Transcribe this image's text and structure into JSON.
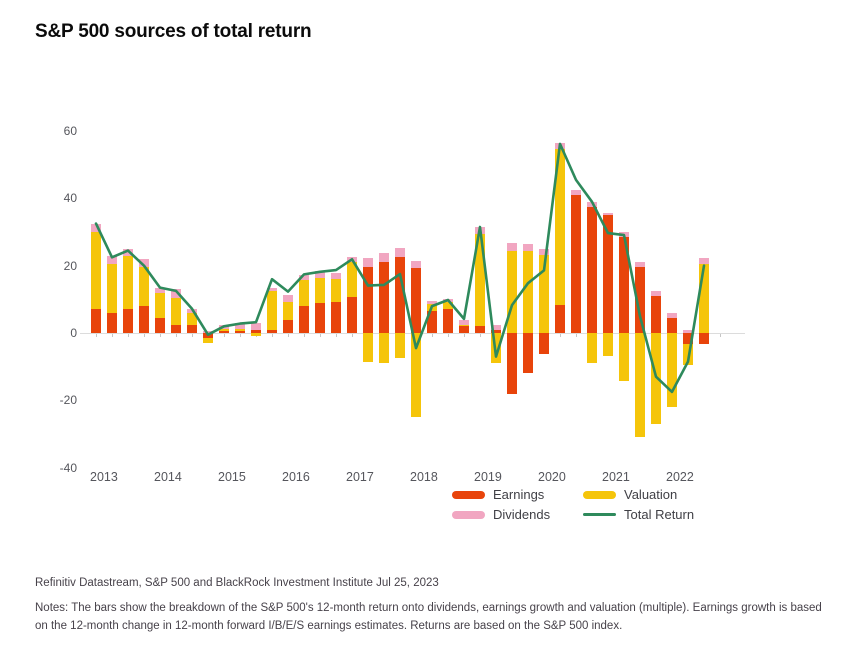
{
  "title": "S&P 500 sources of total return",
  "colors": {
    "earnings": "#E8440B",
    "valuation": "#F5C50A",
    "dividends": "#F1A6C1",
    "total_return": "#2E8A5C",
    "axis_line": "#dcdcdc",
    "tick": "#c6c6c6",
    "axis_label": "#55565c"
  },
  "legend": {
    "items": [
      {
        "label": "Earnings",
        "series": "earnings",
        "swatch": "bar"
      },
      {
        "label": "Valuation",
        "series": "valuation",
        "swatch": "bar"
      },
      {
        "label": "Dividends",
        "series": "dividends",
        "swatch": "bar"
      },
      {
        "label": "Total Return",
        "series": "total_return",
        "swatch": "line"
      }
    ]
  },
  "footer": {
    "source": "Refinitiv Datastream, S&P 500 and BlackRock Investment Institute Jul 25, 2023",
    "notes": "Notes: The bars show the breakdown of the S&P 500's 12-month return onto dividends, earnings growth and valuation (multiple). Earnings growth is based on the 12-month change in 12-month forward I/B/E/S earnings estimates. Returns are based on the S&P 500 index."
  },
  "chart_data": {
    "type": "bar",
    "subtype": "stacked bars (quarterly) with total-return line overlay",
    "start_year": 2013,
    "bars_per_year": 4,
    "n_bars": 39,
    "year_labels": [
      "2013",
      "2014",
      "2015",
      "2016",
      "2017",
      "2018",
      "2019",
      "2020",
      "2021",
      "2022"
    ],
    "yticks": [
      60,
      40,
      20,
      0,
      -20,
      -40
    ],
    "ylim": [
      -40,
      62
    ],
    "grid": "off",
    "legend_position": "bottom-right",
    "series": [
      {
        "name": "Earnings",
        "values": [
          7,
          6,
          7,
          8,
          4.5,
          2.5,
          2.5,
          -1.5,
          0.5,
          0.5,
          1,
          1,
          4,
          8,
          9,
          9.3,
          10.8,
          19.7,
          21.2,
          22.7,
          19.2,
          6.5,
          7,
          2,
          2,
          1,
          -18,
          -12,
          -6.3,
          8.3,
          41,
          37.5,
          35,
          28.6,
          19.5,
          11.1,
          4.4,
          -3.3,
          -3.3
        ]
      },
      {
        "name": "Valuation",
        "values": [
          23,
          14.5,
          16,
          11.5,
          7.5,
          8,
          3.5,
          -1.5,
          0.7,
          0.8,
          -1,
          11.5,
          5.3,
          7.8,
          7.3,
          6.7,
          10.4,
          -8.5,
          -9,
          -7.5,
          -25,
          2,
          2.2,
          0.5,
          27.5,
          -9,
          24.5,
          24.5,
          23.2,
          46.5,
          0,
          -9,
          -6.8,
          -14.2,
          -31,
          -27,
          -22,
          -6.2,
          20.5
        ]
      },
      {
        "name": "Dividends",
        "values": [
          2.5,
          2.5,
          2,
          2.5,
          1.5,
          2.5,
          1,
          0.5,
          1.3,
          1.7,
          2,
          1,
          2,
          1.4,
          2.2,
          1.9,
          1.5,
          2.7,
          2.5,
          2.5,
          2.2,
          1,
          1,
          1.5,
          2,
          1.5,
          2.2,
          1.9,
          1.7,
          1.8,
          1.6,
          1.4,
          0.8,
          1.5,
          1.5,
          1.4,
          1.4,
          1,
          1.7
        ]
      },
      {
        "name": "Total Return",
        "values": [
          32.5,
          22.5,
          24.5,
          20,
          13.5,
          12.5,
          7.2,
          -0.5,
          2,
          2.8,
          3.2,
          16,
          12.3,
          17.4,
          18.2,
          18.7,
          21.9,
          14.1,
          14.3,
          17.5,
          -4.5,
          8,
          9.8,
          4.2,
          31.5,
          -7,
          8.3,
          14.8,
          18.6,
          56.2,
          45.5,
          39,
          29.7,
          29.1,
          5,
          -13,
          -17.5,
          -8.5,
          20
        ]
      }
    ]
  }
}
